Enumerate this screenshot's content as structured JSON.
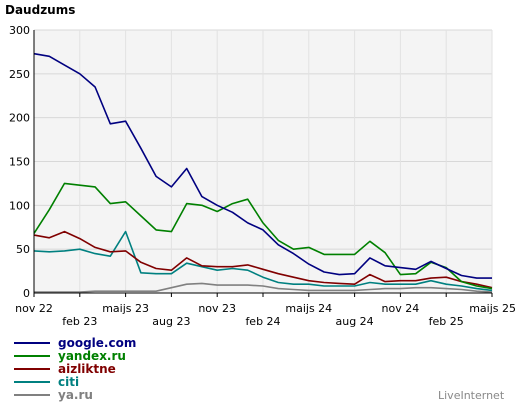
{
  "chart_data": {
    "type": "line",
    "title": "Daudzums",
    "credit": "LiveInternet",
    "ylim": [
      0,
      300
    ],
    "yticks": [
      "0",
      "50",
      "100",
      "150",
      "200",
      "250",
      "300"
    ],
    "grid": true,
    "legend_position": "bottom-left",
    "x_tick_labels": [
      {
        "label": "nov 22",
        "row": 1
      },
      {
        "label": "feb 23",
        "row": 2
      },
      {
        "label": "maijs 23",
        "row": 1
      },
      {
        "label": "aug 23",
        "row": 2
      },
      {
        "label": "nov 23",
        "row": 1
      },
      {
        "label": "feb 24",
        "row": 2
      },
      {
        "label": "maijs 24",
        "row": 1
      },
      {
        "label": "aug 24",
        "row": 2
      },
      {
        "label": "nov 24",
        "row": 1
      },
      {
        "label": "feb 25",
        "row": 2
      },
      {
        "label": "maijs 25",
        "row": 1
      }
    ],
    "x_labels_ticks": [
      "nov 22",
      "feb 23",
      "maijs 23",
      "aug 23",
      "nov 23",
      "feb 24",
      "maijs 24",
      "aug 24",
      "nov 24",
      "feb 25",
      "maijs 25"
    ],
    "series": [
      {
        "name": "google.com",
        "color": "#000080",
        "values": [
          273,
          270,
          260,
          250,
          235,
          193,
          196,
          165,
          133,
          121,
          142,
          110,
          100,
          92,
          80,
          72,
          55,
          45,
          33,
          24,
          21,
          22,
          40,
          31,
          29,
          27,
          36,
          28,
          20,
          17,
          17
        ]
      },
      {
        "name": "yandex.ru",
        "color": "#008000",
        "values": [
          68,
          95,
          125,
          123,
          121,
          102,
          104,
          88,
          72,
          70,
          102,
          100,
          93,
          102,
          107,
          80,
          60,
          50,
          52,
          44,
          44,
          44,
          59,
          46,
          21,
          22,
          35,
          29,
          13,
          8,
          5
        ]
      },
      {
        "name": "aizliktne",
        "color": "#800000",
        "values": [
          66,
          63,
          70,
          62,
          52,
          47,
          48,
          35,
          28,
          26,
          40,
          31,
          30,
          30,
          32,
          27,
          22,
          18,
          14,
          12,
          11,
          10,
          21,
          13,
          14,
          14,
          17,
          18,
          13,
          10,
          6
        ]
      },
      {
        "name": "citi",
        "color": "#008080",
        "values": [
          48,
          47,
          48,
          50,
          45,
          42,
          70,
          23,
          22,
          22,
          34,
          30,
          26,
          28,
          26,
          18,
          12,
          10,
          10,
          8,
          8,
          8,
          12,
          10,
          10,
          10,
          14,
          10,
          8,
          5,
          3
        ]
      },
      {
        "name": "ya.ru",
        "color": "#808080",
        "values": [
          1,
          1,
          1,
          1,
          2,
          2,
          2,
          2,
          2,
          6,
          10,
          11,
          9,
          9,
          9,
          8,
          5,
          4,
          3,
          3,
          3,
          3,
          4,
          5,
          5,
          6,
          6,
          5,
          4,
          2,
          1
        ]
      }
    ]
  }
}
